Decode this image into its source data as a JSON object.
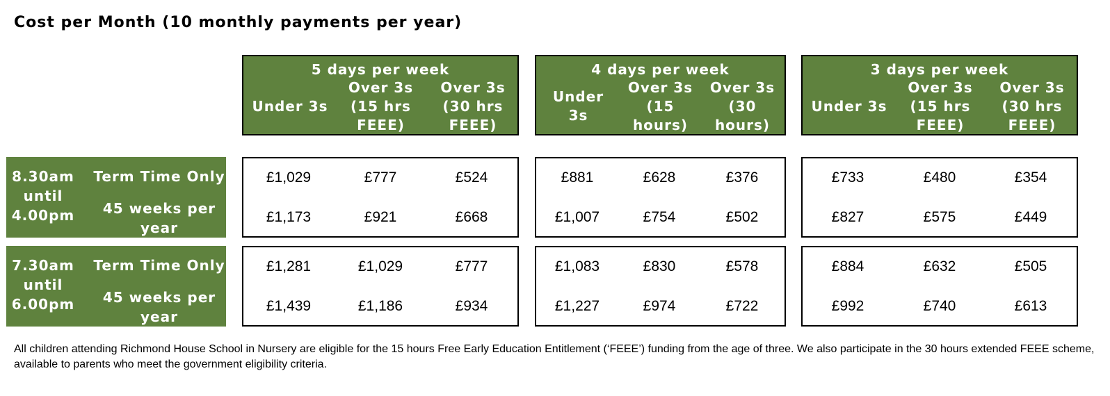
{
  "title": "Cost per Month (10 monthly payments per year)",
  "groups": [
    {
      "label": "5 days per week",
      "cols": [
        "Under 3s",
        "Over 3s (15 hrs FEEE)",
        "Over 3s (30 hrs FEEE)"
      ]
    },
    {
      "label": "4 days per week",
      "cols": [
        "Under 3s",
        "Over 3s (15 hours)",
        "Over 3s (30 hours)"
      ]
    },
    {
      "label": "3 days per week",
      "cols": [
        "Under 3s",
        "Over 3s (15 hrs FEEE)",
        "Over 3s (30 hrs FEEE)"
      ]
    }
  ],
  "sessions": [
    {
      "time": "8.30am until 4.00pm",
      "term_label": "Term Time Only",
      "weeks_label": "45 weeks per year",
      "term_values": [
        [
          "£1,029",
          "£777",
          "£524"
        ],
        [
          "£881",
          "£628",
          "£376"
        ],
        [
          "£733",
          "£480",
          "£354"
        ]
      ],
      "weeks_values": [
        [
          "£1,173",
          "£921",
          "£668"
        ],
        [
          "£1,007",
          "£754",
          "£502"
        ],
        [
          "£827",
          "£575",
          "£449"
        ]
      ]
    },
    {
      "time": "7.30am until 6.00pm",
      "term_label": "Term Time Only",
      "weeks_label": "45 weeks per year",
      "term_values": [
        [
          "£1,281",
          "£1,029",
          "£777"
        ],
        [
          "£1,083",
          "£830",
          "£578"
        ],
        [
          "£884",
          "£632",
          "£505"
        ]
      ],
      "weeks_values": [
        [
          "£1,439",
          "£1,186",
          "£934"
        ],
        [
          "£1,227",
          "£974",
          "£722"
        ],
        [
          "£992",
          "£740",
          "£613"
        ]
      ]
    }
  ],
  "footer": "All children attending Richmond House School in Nursery are eligible for the 15 hours Free Early Education Entitlement (‘FEEE’)  funding from the age of three.  We also participate in the 30 hours extended FEEE scheme, available to parents who meet the government eligibility criteria."
}
